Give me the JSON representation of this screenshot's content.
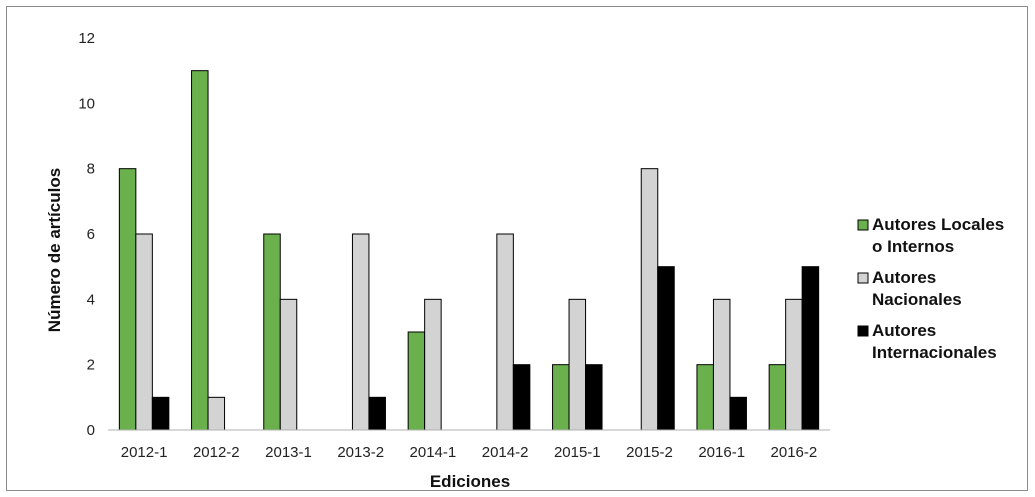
{
  "chart_data": {
    "type": "bar",
    "xlabel": "Ediciones",
    "ylabel": "Número de artículos",
    "ylim": [
      0,
      12
    ],
    "yticks": [
      0,
      2,
      4,
      6,
      8,
      10,
      12
    ],
    "grid": false,
    "legend_position": "right",
    "categories": [
      "2012-1",
      "2012-2",
      "2013-1",
      "2013-2",
      "2014-1",
      "2014-2",
      "2015-1",
      "2015-2",
      "2016-1",
      "2016-2"
    ],
    "series": [
      {
        "name": "Autores Locales o Internos",
        "label_lines": [
          "Autores Locales",
          "o Internos"
        ],
        "color": "#6ab04c",
        "values": [
          8,
          11,
          6,
          0,
          3,
          0,
          2,
          0,
          2,
          2
        ]
      },
      {
        "name": "Autores Nacionales",
        "label_lines": [
          "Autores",
          "Nacionales"
        ],
        "color": "#d3d3d3",
        "values": [
          6,
          1,
          4,
          6,
          4,
          6,
          4,
          8,
          4,
          4
        ]
      },
      {
        "name": "Autores Internacionales",
        "label_lines": [
          "Autores",
          "Internacionales"
        ],
        "color": "#000000",
        "values": [
          1,
          0,
          0,
          1,
          0,
          2,
          2,
          5,
          1,
          5
        ]
      }
    ]
  }
}
